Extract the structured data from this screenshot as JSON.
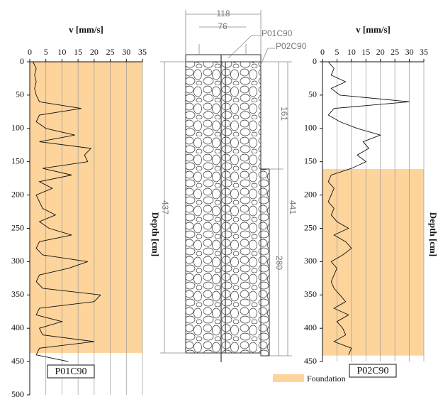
{
  "chart_data": [
    {
      "type": "line",
      "xlabel": "v [mm/s]",
      "ylabel": "Depth [cm]",
      "label": "P01C90",
      "xlim": [
        0,
        35
      ],
      "xticks": [
        0,
        5,
        10,
        15,
        20,
        25,
        30,
        35
      ],
      "ylim": [
        0,
        500
      ],
      "yticks": [
        0,
        50,
        100,
        150,
        200,
        250,
        300,
        350,
        400,
        450,
        500
      ],
      "shaded": [
        0,
        437
      ],
      "grid": true,
      "color": "#111111",
      "x": [
        0,
        10,
        20,
        30,
        40,
        50,
        60,
        70,
        80,
        90,
        100,
        110,
        120,
        130,
        140,
        150,
        160,
        170,
        180,
        190,
        200,
        210,
        220,
        230,
        240,
        250,
        260,
        270,
        280,
        290,
        300,
        310,
        320,
        330,
        340,
        350,
        360,
        370,
        380,
        390,
        400,
        410,
        420,
        430,
        440,
        450
      ],
      "values": [
        1,
        2,
        1.5,
        2,
        1.5,
        2,
        3,
        16,
        3,
        2,
        5,
        14,
        3,
        19,
        17,
        18,
        4,
        13,
        3,
        7,
        2,
        3,
        4,
        8,
        3,
        6,
        13,
        3,
        2,
        4,
        18,
        12,
        3,
        2,
        4,
        22,
        20,
        3,
        2,
        10,
        3,
        4,
        20,
        3,
        2,
        12
      ]
    },
    {
      "type": "line",
      "xlabel": "v [mm/s]",
      "ylabel": "Depth [cm]",
      "label": "P02C90",
      "xlim": [
        0,
        35
      ],
      "xticks": [
        0,
        5,
        10,
        15,
        20,
        25,
        30,
        35
      ],
      "ylim": [
        0,
        450
      ],
      "yticks": [
        0,
        50,
        100,
        150,
        200,
        250,
        300,
        350,
        400,
        450
      ],
      "shaded": [
        161,
        441
      ],
      "grid": true,
      "color": "#111111",
      "x": [
        0,
        10,
        20,
        30,
        40,
        50,
        60,
        70,
        80,
        90,
        100,
        110,
        120,
        130,
        140,
        150,
        160,
        170,
        180,
        190,
        200,
        210,
        220,
        230,
        240,
        250,
        260,
        270,
        280,
        290,
        300,
        310,
        320,
        330,
        340,
        350,
        360,
        370,
        380,
        390,
        400,
        410,
        420,
        430,
        440
      ],
      "values": [
        2,
        4,
        3,
        8,
        3,
        6,
        30,
        4,
        2,
        6,
        12,
        20,
        14,
        16,
        12,
        15,
        10,
        3,
        2,
        4,
        3,
        2,
        4,
        3,
        5,
        9,
        4,
        8,
        10,
        7,
        3,
        5,
        4,
        3,
        4,
        6,
        8,
        4,
        9,
        5,
        7,
        8,
        4,
        10,
        9
      ]
    }
  ],
  "legend": {
    "label": "Foundation",
    "color": "#fcd49c"
  },
  "diagram": {
    "labels": [
      "P01C90",
      "P02C90"
    ],
    "dims": [
      118,
      76,
      437,
      161,
      441,
      280
    ]
  }
}
